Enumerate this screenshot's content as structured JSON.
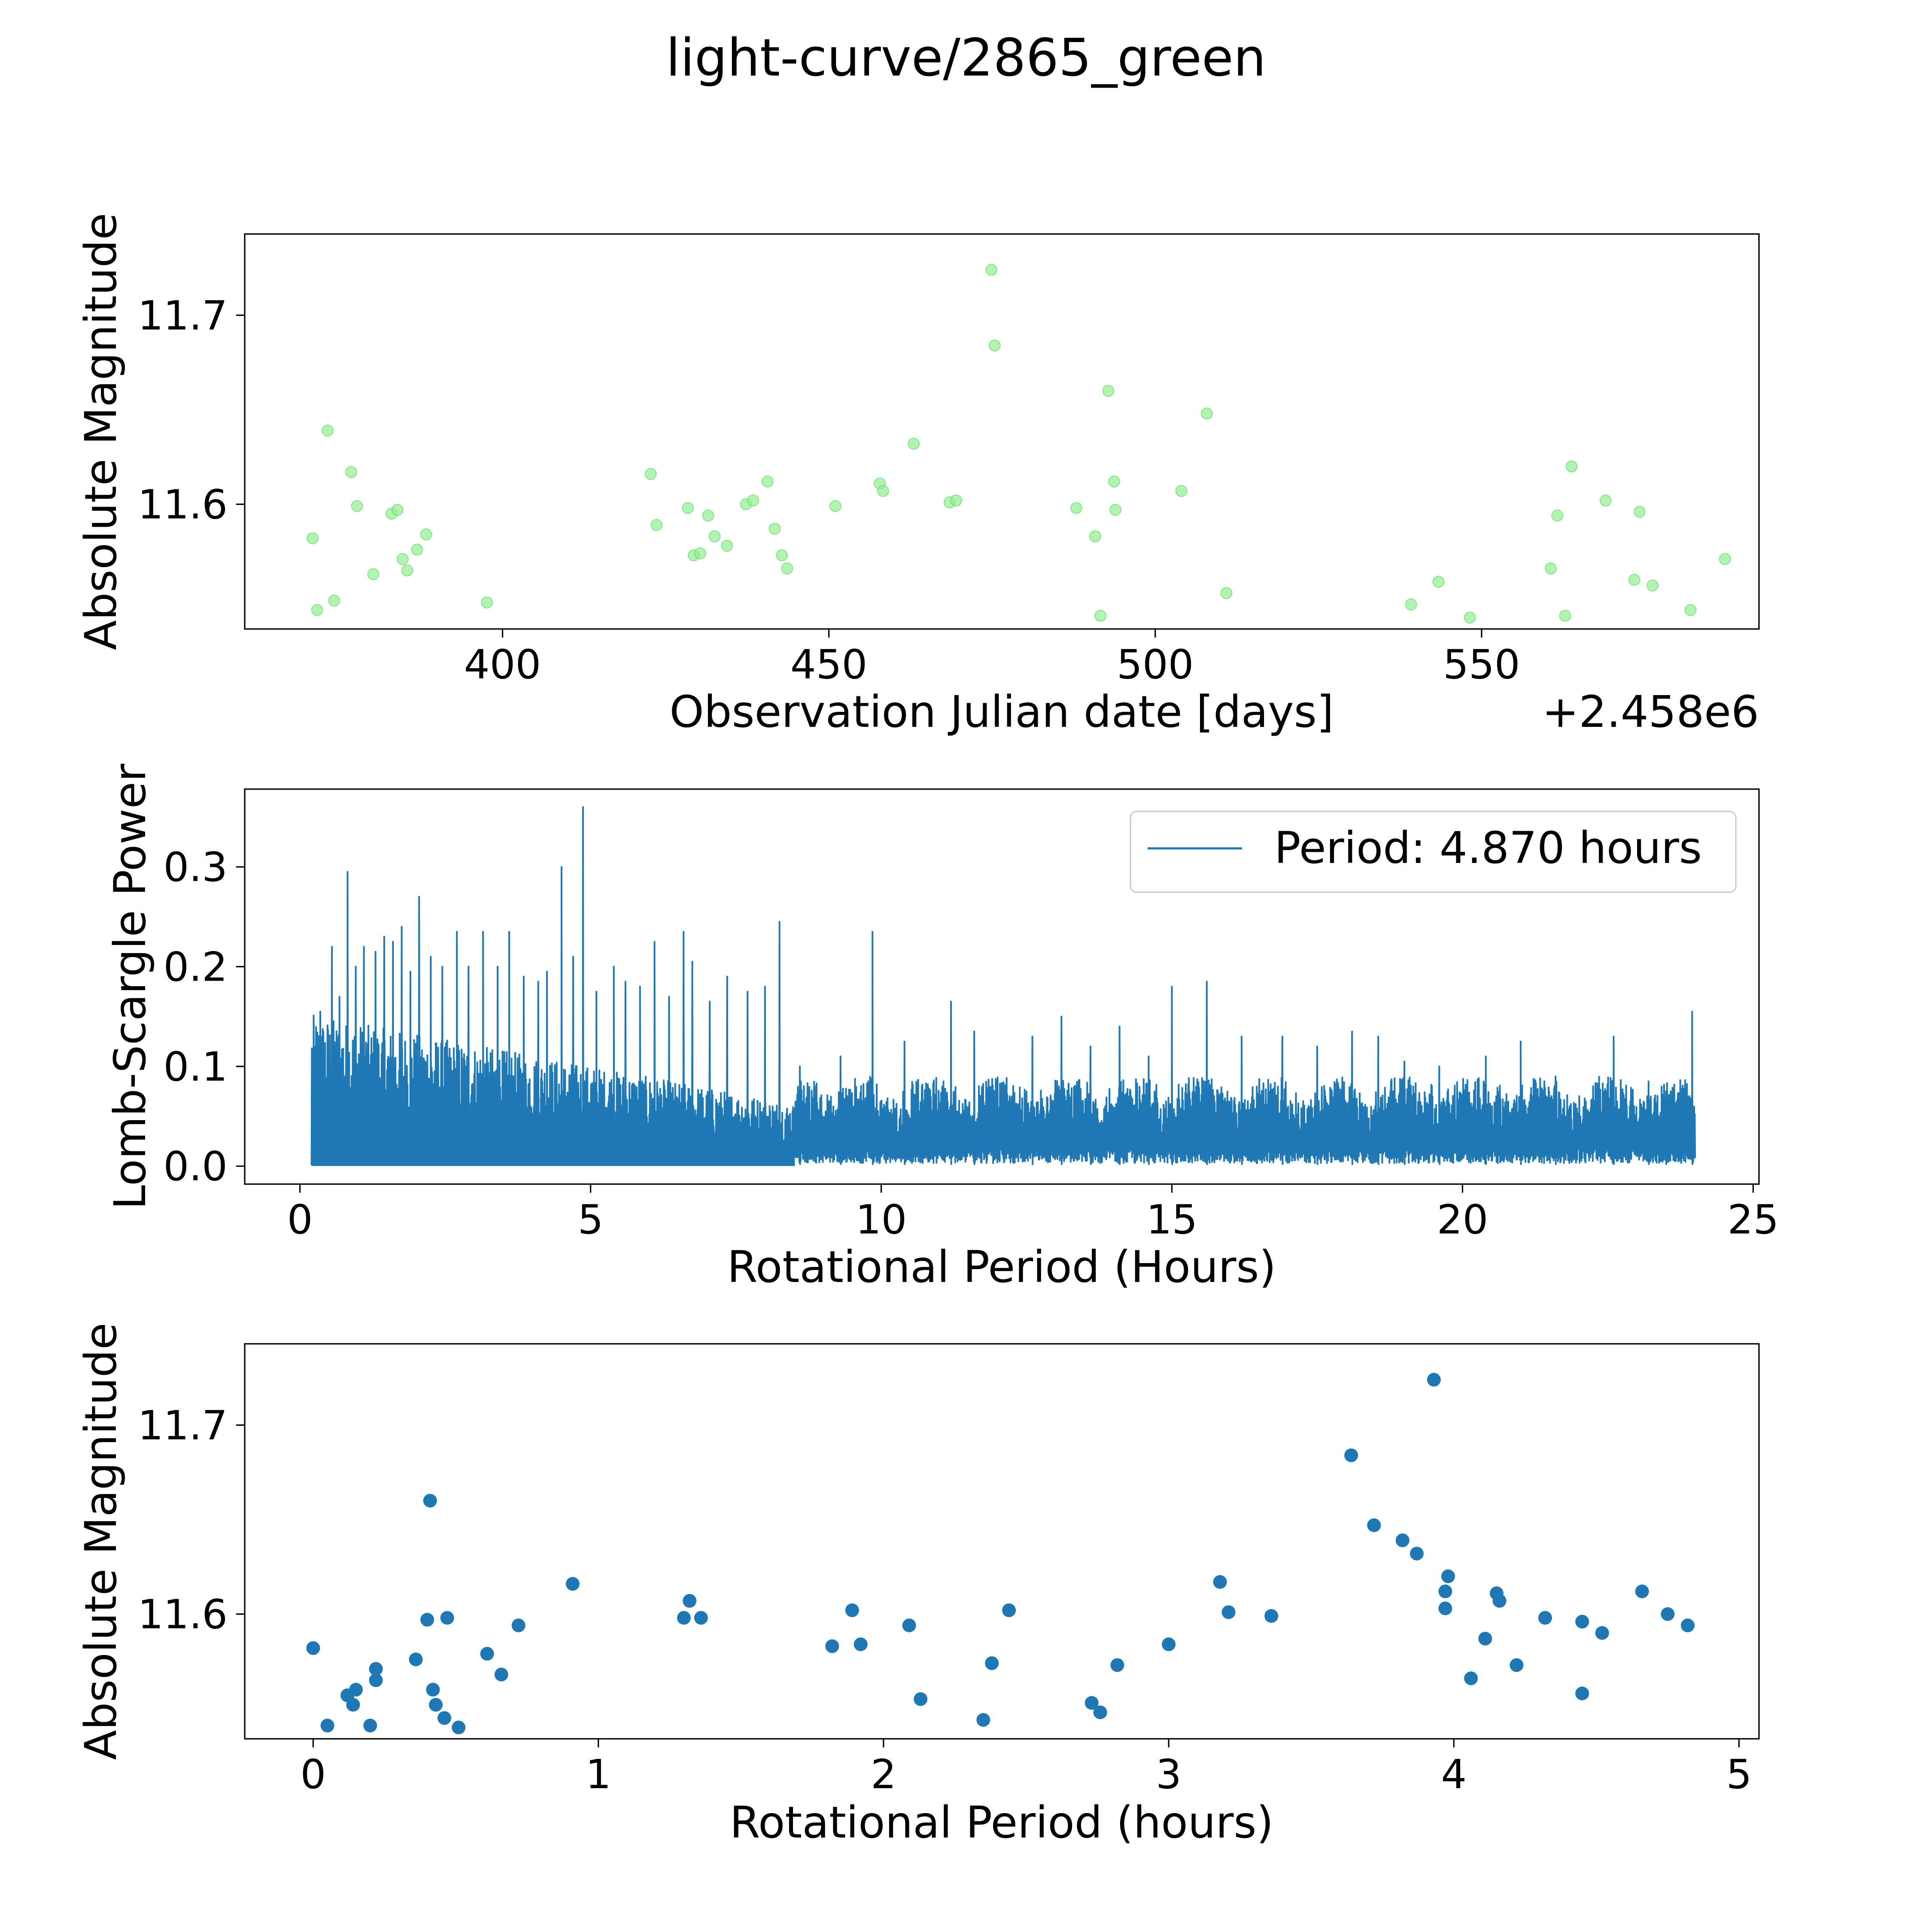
{
  "figure": {
    "title": "light-curve/2865_green"
  },
  "chart_data": [
    {
      "type": "scatter",
      "name": "light-curve",
      "xlabel": "Observation Julian date [days]",
      "ylabel": "Absolute Magnitude",
      "offset_label": "+2.458e6",
      "xlim": [
        360.5,
        592.5
      ],
      "ylim": [
        11.534,
        11.743
      ],
      "xticks": [
        400,
        450,
        500,
        550
      ],
      "xtick_labels": [
        "400",
        "450",
        "500",
        "550"
      ],
      "yticks": [
        11.6,
        11.7
      ],
      "ytick_labels": [
        "11.6",
        "11.7"
      ],
      "marker_color": "#90ee90",
      "marker_alpha": 0.7,
      "points": [
        [
          370.9,
          11.582
        ],
        [
          371.6,
          11.544
        ],
        [
          373.2,
          11.639
        ],
        [
          374.2,
          11.549
        ],
        [
          376.8,
          11.617
        ],
        [
          377.7,
          11.599
        ],
        [
          380.2,
          11.563
        ],
        [
          383.0,
          11.595
        ],
        [
          383.9,
          11.597
        ],
        [
          384.7,
          11.571
        ],
        [
          385.4,
          11.565
        ],
        [
          386.9,
          11.576
        ],
        [
          388.3,
          11.584
        ],
        [
          397.6,
          11.548
        ],
        [
          422.7,
          11.616
        ],
        [
          423.6,
          11.589
        ],
        [
          428.4,
          11.598
        ],
        [
          429.3,
          11.573
        ],
        [
          430.3,
          11.574
        ],
        [
          431.5,
          11.594
        ],
        [
          432.5,
          11.583
        ],
        [
          434.4,
          11.578
        ],
        [
          437.3,
          11.6
        ],
        [
          438.4,
          11.602
        ],
        [
          440.6,
          11.612
        ],
        [
          441.7,
          11.587
        ],
        [
          442.8,
          11.573
        ],
        [
          443.6,
          11.566
        ],
        [
          451.0,
          11.599
        ],
        [
          457.8,
          11.611
        ],
        [
          458.3,
          11.607
        ],
        [
          463.0,
          11.632
        ],
        [
          468.5,
          11.601
        ],
        [
          469.5,
          11.602
        ],
        [
          474.9,
          11.724
        ],
        [
          475.4,
          11.684
        ],
        [
          487.9,
          11.598
        ],
        [
          490.8,
          11.583
        ],
        [
          491.6,
          11.541
        ],
        [
          492.8,
          11.66
        ],
        [
          493.7,
          11.612
        ],
        [
          493.9,
          11.597
        ],
        [
          504.0,
          11.607
        ],
        [
          507.9,
          11.648
        ],
        [
          510.9,
          11.553
        ],
        [
          539.2,
          11.547
        ],
        [
          543.4,
          11.559
        ],
        [
          548.2,
          11.54
        ],
        [
          560.6,
          11.566
        ],
        [
          561.6,
          11.594
        ],
        [
          562.8,
          11.541
        ],
        [
          563.8,
          11.62
        ],
        [
          569.0,
          11.602
        ],
        [
          574.2,
          11.596
        ],
        [
          573.4,
          11.56
        ],
        [
          576.2,
          11.557
        ],
        [
          582.0,
          11.544
        ],
        [
          587.3,
          11.571
        ]
      ]
    },
    {
      "type": "line",
      "name": "periodogram",
      "xlabel": "Rotational Period (Hours)",
      "ylabel": "Lomb-Scargle Power",
      "xlim": [
        -0.95,
        25.1
      ],
      "ylim": [
        -0.018,
        0.378
      ],
      "xticks": [
        0,
        5,
        10,
        15,
        20,
        25
      ],
      "xtick_labels": [
        "0",
        "5",
        "10",
        "15",
        "20",
        "25"
      ],
      "yticks": [
        0.0,
        0.1,
        0.2,
        0.3
      ],
      "ytick_labels": [
        "0.0",
        "0.1",
        "0.2",
        "0.3"
      ],
      "line_color": "#1f77b4",
      "legend_label": "Period: 4.870 hours",
      "x_range": [
        0.2,
        24.0
      ],
      "peaks": [
        [
          0.35,
          0.155
        ],
        [
          0.55,
          0.22
        ],
        [
          0.68,
          0.17
        ],
        [
          0.82,
          0.295
        ],
        [
          0.96,
          0.2
        ],
        [
          1.1,
          0.22
        ],
        [
          1.3,
          0.215
        ],
        [
          1.45,
          0.23
        ],
        [
          1.6,
          0.225
        ],
        [
          1.75,
          0.24
        ],
        [
          1.9,
          0.195
        ],
        [
          2.05,
          0.27
        ],
        [
          2.25,
          0.21
        ],
        [
          2.45,
          0.2
        ],
        [
          2.7,
          0.235
        ],
        [
          2.9,
          0.2
        ],
        [
          3.15,
          0.235
        ],
        [
          3.4,
          0.2
        ],
        [
          3.6,
          0.235
        ],
        [
          3.85,
          0.19
        ],
        [
          4.1,
          0.185
        ],
        [
          4.25,
          0.195
        ],
        [
          4.5,
          0.3
        ],
        [
          4.7,
          0.21
        ],
        [
          4.87,
          0.36
        ],
        [
          5.1,
          0.175
        ],
        [
          5.4,
          0.2
        ],
        [
          5.6,
          0.185
        ],
        [
          5.85,
          0.18
        ],
        [
          6.1,
          0.225
        ],
        [
          6.35,
          0.17
        ],
        [
          6.6,
          0.235
        ],
        [
          6.75,
          0.205
        ],
        [
          7.05,
          0.165
        ],
        [
          7.35,
          0.19
        ],
        [
          7.7,
          0.175
        ],
        [
          8.0,
          0.18
        ],
        [
          8.25,
          0.245
        ],
        [
          8.6,
          0.1
        ],
        [
          9.3,
          0.11
        ],
        [
          9.85,
          0.235
        ],
        [
          10.4,
          0.125
        ],
        [
          11.2,
          0.165
        ],
        [
          11.6,
          0.135
        ],
        [
          12.6,
          0.13
        ],
        [
          13.1,
          0.15
        ],
        [
          13.6,
          0.12
        ],
        [
          14.1,
          0.14
        ],
        [
          14.6,
          0.11
        ],
        [
          15.0,
          0.18
        ],
        [
          15.6,
          0.185
        ],
        [
          16.2,
          0.13
        ],
        [
          16.9,
          0.13
        ],
        [
          17.5,
          0.12
        ],
        [
          18.1,
          0.135
        ],
        [
          18.55,
          0.13
        ],
        [
          19.0,
          0.105
        ],
        [
          19.6,
          0.1
        ],
        [
          20.4,
          0.11
        ],
        [
          21.0,
          0.125
        ],
        [
          21.6,
          0.09
        ],
        [
          22.6,
          0.13
        ],
        [
          23.2,
          0.085
        ],
        [
          23.5,
          0.075
        ],
        [
          23.95,
          0.155
        ]
      ]
    },
    {
      "type": "scatter",
      "name": "folded-light-curve",
      "xlabel": "Rotational Period (hours)",
      "ylabel": "Absolute Magnitude",
      "xlim": [
        -0.24,
        5.07
      ],
      "ylim": [
        11.534,
        11.743
      ],
      "xticks": [
        0,
        1,
        2,
        3,
        4,
        5
      ],
      "xtick_labels": [
        "0",
        "1",
        "2",
        "3",
        "4",
        "5"
      ],
      "yticks": [
        11.6,
        11.7
      ],
      "ytick_labels": [
        "11.6",
        "11.7"
      ],
      "marker_color": "#1f77b4",
      "points": [
        [
          0.0,
          11.582
        ],
        [
          0.05,
          11.541
        ],
        [
          0.12,
          11.557
        ],
        [
          0.15,
          11.56
        ],
        [
          0.14,
          11.552
        ],
        [
          0.2,
          11.541
        ],
        [
          0.22,
          11.571
        ],
        [
          0.22,
          11.565
        ],
        [
          0.36,
          11.576
        ],
        [
          0.4,
          11.597
        ],
        [
          0.41,
          11.66
        ],
        [
          0.42,
          11.56
        ],
        [
          0.43,
          11.552
        ],
        [
          0.46,
          11.545
        ],
        [
          0.47,
          11.598
        ],
        [
          0.51,
          11.54
        ],
        [
          0.61,
          11.579
        ],
        [
          0.66,
          11.568
        ],
        [
          0.72,
          11.594
        ],
        [
          0.91,
          11.616
        ],
        [
          1.3,
          11.598
        ],
        [
          1.32,
          11.607
        ],
        [
          1.36,
          11.598
        ],
        [
          1.82,
          11.583
        ],
        [
          1.89,
          11.602
        ],
        [
          1.92,
          11.584
        ],
        [
          2.09,
          11.594
        ],
        [
          2.13,
          11.555
        ],
        [
          2.35,
          11.544
        ],
        [
          2.38,
          11.574
        ],
        [
          2.44,
          11.602
        ],
        [
          2.73,
          11.553
        ],
        [
          2.76,
          11.548
        ],
        [
          2.82,
          11.573
        ],
        [
          3.0,
          11.584
        ],
        [
          3.18,
          11.617
        ],
        [
          3.21,
          11.601
        ],
        [
          3.36,
          11.599
        ],
        [
          3.64,
          11.684
        ],
        [
          3.72,
          11.647
        ],
        [
          3.82,
          11.639
        ],
        [
          3.87,
          11.632
        ],
        [
          3.93,
          11.724
        ],
        [
          3.97,
          11.612
        ],
        [
          3.97,
          11.603
        ],
        [
          3.98,
          11.62
        ],
        [
          4.06,
          11.566
        ],
        [
          4.11,
          11.587
        ],
        [
          4.15,
          11.611
        ],
        [
          4.16,
          11.607
        ],
        [
          4.22,
          11.573
        ],
        [
          4.32,
          11.598
        ],
        [
          4.45,
          11.596
        ],
        [
          4.45,
          11.558
        ],
        [
          4.52,
          11.59
        ],
        [
          4.66,
          11.612
        ],
        [
          4.75,
          11.6
        ],
        [
          4.82,
          11.594
        ]
      ]
    }
  ]
}
